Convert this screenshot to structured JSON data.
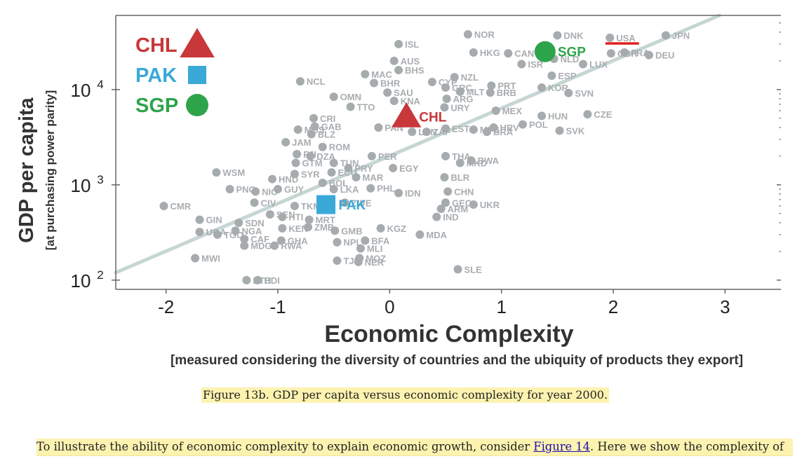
{
  "chart_data": {
    "type": "scatter",
    "title": "",
    "xlabel": "Economic Complexity",
    "xlabel_sub": "[measured considering the diversity of countries and the ubiquity of products they export]",
    "ylabel": "GDP per capita",
    "ylabel_sub": "[at purchasing power parity]",
    "xlim": [
      -2.45,
      3.5
    ],
    "ylim": [
      80,
      60000
    ],
    "yscale": "log",
    "x_ticks": [
      -2,
      -1,
      0,
      1,
      2,
      3
    ],
    "x_tick_labels": [
      "-2",
      "-1",
      "0",
      "1",
      "2",
      "3"
    ],
    "y_ticks": [
      100,
      1000,
      10000
    ],
    "y_tick_labels": [
      {
        "base": "10",
        "exp": "2"
      },
      {
        "base": "10",
        "exp": "3"
      },
      {
        "base": "10",
        "exp": "4"
      }
    ],
    "grid": false,
    "trend_line": {
      "x": [
        -2.45,
        2.95
      ],
      "y": [
        120,
        60000
      ]
    },
    "legend": {
      "position": "top-left",
      "entries": [
        {
          "label": "CHL",
          "marker": "triangle",
          "color": "#c8373a"
        },
        {
          "label": "PAK",
          "marker": "square",
          "color": "#3aa9d8"
        },
        {
          "label": "SGP",
          "marker": "circle",
          "color": "#2ea44a"
        }
      ]
    },
    "highlights": [
      {
        "label": "CHL",
        "marker": "triangle",
        "color": "#c8373a",
        "x": 0.15,
        "y": 5200
      },
      {
        "label": "PAK",
        "marker": "square",
        "color": "#3aa9d8",
        "x": -0.57,
        "y": 620
      },
      {
        "label": "SGP",
        "marker": "circle",
        "color": "#2ea44a",
        "x": 1.39,
        "y": 25000
      }
    ],
    "usa_marker": {
      "x": [
        1.93,
        2.23
      ],
      "y": 30500,
      "color": "#e02020"
    },
    "colors": {
      "point": "#a6abae",
      "label": "#a9adb0",
      "trend": "#c5d6d3",
      "axis": "#666666"
    },
    "points": [
      {
        "label": "ISL",
        "x": 0.08,
        "y": 30000
      },
      {
        "label": "NOR",
        "x": 0.7,
        "y": 38000
      },
      {
        "label": "DNK",
        "x": 1.5,
        "y": 37000
      },
      {
        "label": "USA",
        "x": 1.97,
        "y": 35000
      },
      {
        "label": "JPN",
        "x": 2.47,
        "y": 37000
      },
      {
        "label": "HKG",
        "x": 0.75,
        "y": 24500
      },
      {
        "label": "CAN",
        "x": 1.06,
        "y": 24000
      },
      {
        "label": "AUS",
        "x": 0.04,
        "y": 20000
      },
      {
        "label": "ISR",
        "x": 1.18,
        "y": 18500
      },
      {
        "label": "NLD",
        "x": 1.47,
        "y": 21000
      },
      {
        "label": "LUX",
        "x": 1.73,
        "y": 18500
      },
      {
        "label": "GBR",
        "x": 1.98,
        "y": 24000
      },
      {
        "label": "FRA",
        "x": 2.1,
        "y": 24500
      },
      {
        "label": "DEU",
        "x": 2.32,
        "y": 23000
      },
      {
        "label": "MAC",
        "x": -0.22,
        "y": 14500
      },
      {
        "label": "BHS",
        "x": 0.08,
        "y": 16000
      },
      {
        "label": "BHR",
        "x": -0.14,
        "y": 11700
      },
      {
        "label": "NCL",
        "x": -0.8,
        "y": 12200
      },
      {
        "label": "CYP",
        "x": 0.38,
        "y": 12000
      },
      {
        "label": "NZL",
        "x": 0.58,
        "y": 13500
      },
      {
        "label": "PRT",
        "x": 0.91,
        "y": 11000
      },
      {
        "label": "ESP",
        "x": 1.45,
        "y": 14000
      },
      {
        "label": "KOR",
        "x": 1.36,
        "y": 10500
      },
      {
        "label": "SVN",
        "x": 1.6,
        "y": 9200
      },
      {
        "label": "GRC",
        "x": 0.5,
        "y": 10500
      },
      {
        "label": "MLT",
        "x": 0.63,
        "y": 9500
      },
      {
        "label": "BRB",
        "x": 0.9,
        "y": 9300
      },
      {
        "label": "SAU",
        "x": -0.02,
        "y": 9300
      },
      {
        "label": "OMN",
        "x": -0.5,
        "y": 8400
      },
      {
        "label": "KNA",
        "x": 0.04,
        "y": 7600
      },
      {
        "label": "ARG",
        "x": 0.51,
        "y": 8000
      },
      {
        "label": "TTO",
        "x": -0.35,
        "y": 6600
      },
      {
        "label": "URY",
        "x": 0.49,
        "y": 6500
      },
      {
        "label": "MEX",
        "x": 0.95,
        "y": 6000
      },
      {
        "label": "HUN",
        "x": 1.36,
        "y": 5300
      },
      {
        "label": "CZE",
        "x": 1.77,
        "y": 5500
      },
      {
        "label": "CRI",
        "x": -0.68,
        "y": 5000
      },
      {
        "label": "MUS",
        "x": -0.82,
        "y": 3800
      },
      {
        "label": "GAB",
        "x": -0.67,
        "y": 4100
      },
      {
        "label": "BLZ",
        "x": -0.7,
        "y": 3400
      },
      {
        "label": "PAN",
        "x": -0.1,
        "y": 4000
      },
      {
        "label": "LBN",
        "x": 0.2,
        "y": 3600
      },
      {
        "label": "ZAF",
        "x": 0.33,
        "y": 3600
      },
      {
        "label": "EST",
        "x": 0.5,
        "y": 3900
      },
      {
        "label": "MYS",
        "x": 0.75,
        "y": 3800
      },
      {
        "label": "HRV",
        "x": 0.93,
        "y": 4000
      },
      {
        "label": "POL",
        "x": 1.19,
        "y": 4300
      },
      {
        "label": "BRA",
        "x": 0.87,
        "y": 3600
      },
      {
        "label": "SVK",
        "x": 1.52,
        "y": 3700
      },
      {
        "label": "JAM",
        "x": -0.93,
        "y": 2800
      },
      {
        "label": "ROM",
        "x": -0.6,
        "y": 2500
      },
      {
        "label": "FJI",
        "x": -0.83,
        "y": 2100
      },
      {
        "label": "GTM",
        "x": -0.84,
        "y": 1700
      },
      {
        "label": "DZA",
        "x": -0.71,
        "y": 2000
      },
      {
        "label": "PER",
        "x": -0.16,
        "y": 2000
      },
      {
        "label": "THA",
        "x": 0.5,
        "y": 2000
      },
      {
        "label": "BWA",
        "x": 0.73,
        "y": 1800
      },
      {
        "label": "MKD",
        "x": 0.63,
        "y": 1700
      },
      {
        "label": "TUN",
        "x": -0.5,
        "y": 1700
      },
      {
        "label": "WSM",
        "x": -1.55,
        "y": 1350
      },
      {
        "label": "HND",
        "x": -1.05,
        "y": 1150
      },
      {
        "label": "SYR",
        "x": -0.85,
        "y": 1300
      },
      {
        "label": "ECU",
        "x": -0.52,
        "y": 1350
      },
      {
        "label": "PRY",
        "x": -0.37,
        "y": 1500
      },
      {
        "label": "EGY",
        "x": 0.03,
        "y": 1500
      },
      {
        "label": "MAR",
        "x": -0.3,
        "y": 1200
      },
      {
        "label": "BLR",
        "x": 0.49,
        "y": 1200
      },
      {
        "label": "BOL",
        "x": -0.6,
        "y": 1050
      },
      {
        "label": "GUY",
        "x": -1.0,
        "y": 900
      },
      {
        "label": "PNG",
        "x": -1.43,
        "y": 900
      },
      {
        "label": "NIC",
        "x": -1.2,
        "y": 850
      },
      {
        "label": "CIV",
        "x": -1.21,
        "y": 650
      },
      {
        "label": "LKA",
        "x": -0.5,
        "y": 900
      },
      {
        "label": "PHL",
        "x": -0.17,
        "y": 920
      },
      {
        "label": "IDN",
        "x": 0.08,
        "y": 820
      },
      {
        "label": "CHN",
        "x": 0.52,
        "y": 850
      },
      {
        "label": "GEO",
        "x": 0.5,
        "y": 650
      },
      {
        "label": "UKR",
        "x": 0.75,
        "y": 620
      },
      {
        "label": "ARM",
        "x": 0.46,
        "y": 560
      },
      {
        "label": "CMR",
        "x": -2.02,
        "y": 600
      },
      {
        "label": "TKM",
        "x": -0.85,
        "y": 600
      },
      {
        "label": "ZWE",
        "x": -0.4,
        "y": 650
      },
      {
        "label": "GIN",
        "x": -1.7,
        "y": 430
      },
      {
        "label": "SEN",
        "x": -1.07,
        "y": 490
      },
      {
        "label": "HTI",
        "x": -0.96,
        "y": 460
      },
      {
        "label": "SDN",
        "x": -1.35,
        "y": 400
      },
      {
        "label": "MRT",
        "x": -0.72,
        "y": 430
      },
      {
        "label": "IND",
        "x": 0.42,
        "y": 460
      },
      {
        "label": "KEN",
        "x": -0.96,
        "y": 350
      },
      {
        "label": "UGA",
        "x": -1.7,
        "y": 320
      },
      {
        "label": "TGO",
        "x": -1.54,
        "y": 300
      },
      {
        "label": "NGA",
        "x": -1.38,
        "y": 330
      },
      {
        "label": "ZMB",
        "x": -0.73,
        "y": 360
      },
      {
        "label": "GMB",
        "x": -0.49,
        "y": 330
      },
      {
        "label": "KGZ",
        "x": -0.08,
        "y": 350
      },
      {
        "label": "MDA",
        "x": 0.27,
        "y": 300
      },
      {
        "label": "CAF",
        "x": -1.3,
        "y": 270
      },
      {
        "label": "GHA",
        "x": -0.97,
        "y": 260
      },
      {
        "label": "NPL",
        "x": -0.47,
        "y": 250
      },
      {
        "label": "BFA",
        "x": -0.22,
        "y": 260
      },
      {
        "label": "MDG",
        "x": -1.3,
        "y": 230
      },
      {
        "label": "RWA",
        "x": -1.03,
        "y": 230
      },
      {
        "label": "MLI",
        "x": -0.26,
        "y": 215
      },
      {
        "label": "MWI",
        "x": -1.74,
        "y": 170
      },
      {
        "label": "MOZ",
        "x": -0.27,
        "y": 170
      },
      {
        "label": "TJK",
        "x": -0.47,
        "y": 160
      },
      {
        "label": "NER",
        "x": -0.28,
        "y": 155
      },
      {
        "label": "SLE",
        "x": 0.61,
        "y": 130
      },
      {
        "label": "ETH",
        "x": -1.28,
        "y": 100
      },
      {
        "label": "BDI",
        "x": -1.18,
        "y": 100
      }
    ]
  },
  "caption": "Figure 13b. GDP per capita versus economic complexity for year 2000.",
  "paragraph": {
    "before": "To illustrate the ability of economic complexity to explain economic growth, consider ",
    "link": "Figure 14",
    "after": ". Here we show the complexity of"
  }
}
